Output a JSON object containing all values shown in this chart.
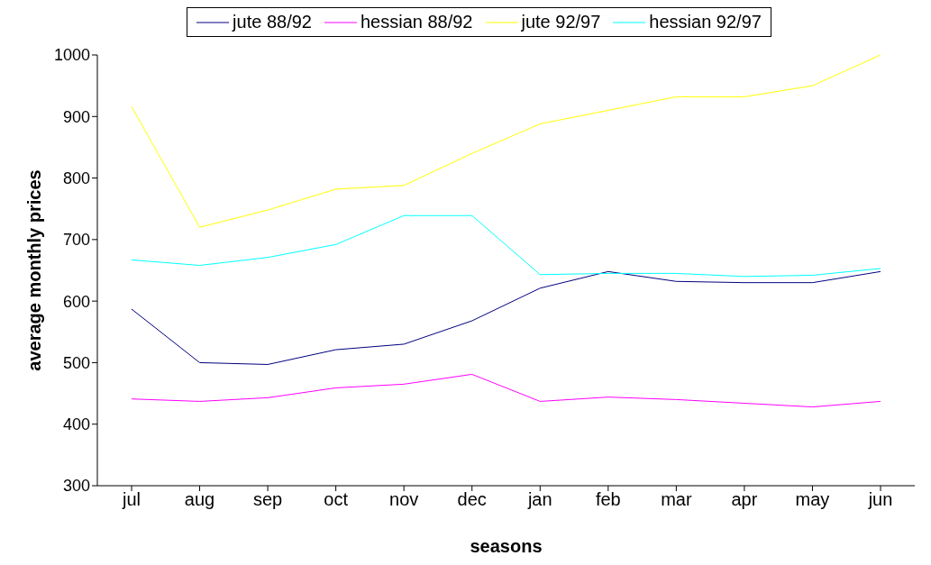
{
  "chart_data": {
    "type": "line",
    "xlabel": "seasons",
    "ylabel": "average monthly prices",
    "categories": [
      "jul",
      "aug",
      "sep",
      "oct",
      "nov",
      "dec",
      "jan",
      "feb",
      "mar",
      "apr",
      "may",
      "jun"
    ],
    "series": [
      {
        "name": "jute 88/92",
        "color": "#000080",
        "values": [
          587,
          500,
          497,
          521,
          530,
          568,
          621,
          648,
          632,
          630,
          630,
          648
        ]
      },
      {
        "name": "hessian 88/92",
        "color": "#ff00ff",
        "values": [
          441,
          437,
          443,
          459,
          465,
          481,
          437,
          444,
          440,
          434,
          428,
          437
        ]
      },
      {
        "name": "jute 92/97",
        "color": "#ffff00",
        "values": [
          916,
          720,
          748,
          782,
          788,
          840,
          888,
          910,
          932,
          932,
          950,
          1000
        ]
      },
      {
        "name": "hessian 92/97",
        "color": "#00ffff",
        "values": [
          667,
          658,
          671,
          692,
          739,
          739,
          643,
          645,
          645,
          640,
          642,
          653
        ]
      }
    ],
    "ylim": [
      300,
      1000
    ],
    "yticks": [
      300,
      400,
      500,
      600,
      700,
      800,
      900,
      1000
    ],
    "grid": false,
    "legend": "top",
    "marker": "none",
    "line_style": "solid"
  }
}
